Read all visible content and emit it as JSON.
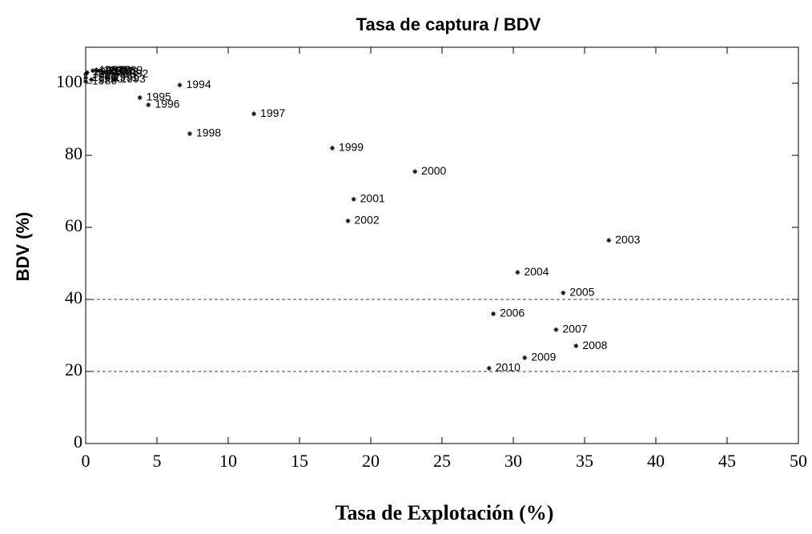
{
  "chart_data": {
    "type": "scatter",
    "title": "Tasa de captura / BDV",
    "x_label": "Tasa de Explotación (%)",
    "y_label": "BDV (%)",
    "x": [
      0,
      0,
      0,
      0.1,
      0.5,
      0.8,
      1.0,
      1.2,
      1.5,
      1.8,
      0.4,
      1.5,
      2.2,
      2.0,
      6.6,
      3.8,
      4.4,
      11.8,
      7.3,
      17.3,
      23.1,
      18.8,
      18.4,
      36.7,
      30.3,
      33.5,
      28.6,
      33.0,
      34.4,
      30.8,
      28.3
    ],
    "values": [
      100.5,
      101.5,
      102.5,
      103,
      103.5,
      103.5,
      103.5,
      103.2,
      103,
      103.5,
      101,
      101.5,
      102.5,
      101,
      99.5,
      96,
      94,
      91.5,
      86,
      82,
      75.5,
      67.8,
      61.8,
      56.4,
      47.5,
      41.8,
      36,
      31.6,
      27.1,
      23.8,
      20.9
    ],
    "labels": [
      "1980",
      "1981",
      "1982",
      "1983",
      "1984",
      "1985",
      "1986",
      "1987",
      "1988",
      "1989",
      "1990",
      "1991",
      "1992",
      "1993",
      "1994",
      "1995",
      "1996",
      "1997",
      "1998",
      "1999",
      "2000",
      "2001",
      "2002",
      "2003",
      "2004",
      "2005",
      "2006",
      "2007",
      "2008",
      "2009",
      "2010"
    ],
    "color": "#000000",
    "xlim": [
      0,
      50
    ],
    "xticks": [
      0,
      5,
      10,
      15,
      20,
      25,
      30,
      35,
      40,
      45,
      50
    ],
    "ylim": [
      0,
      110
    ],
    "yticks": [
      0,
      20,
      40,
      60,
      80,
      100
    ],
    "reference_lines": [
      20,
      40
    ]
  }
}
